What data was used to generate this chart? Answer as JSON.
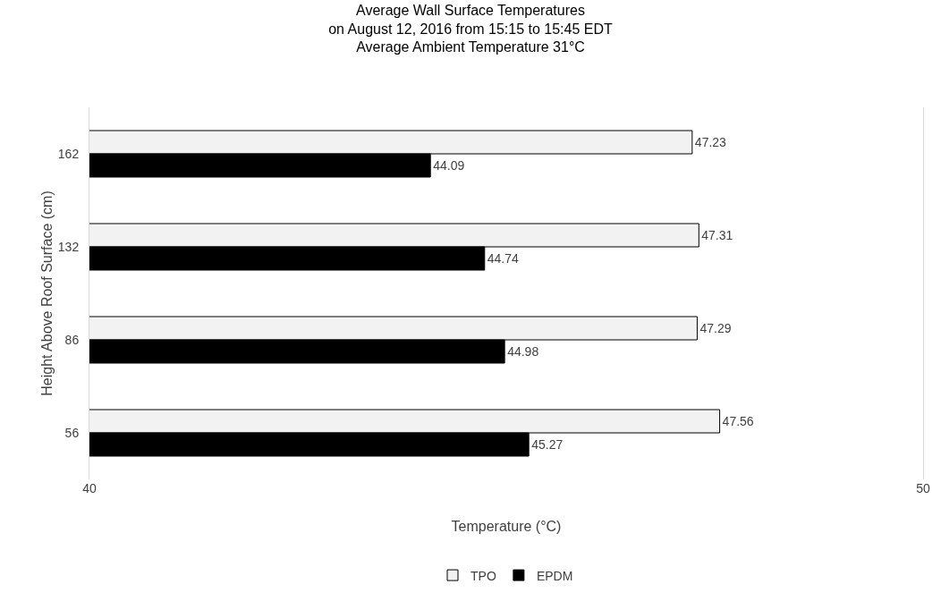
{
  "chart_data": {
    "type": "bar",
    "orientation": "horizontal",
    "title": "Average Wall Surface Temperatures\non August 12, 2016 from 15:15 to 15:45 EDT\nAverage Ambient Temperature 31°C",
    "xlabel": "Temperature (°C)",
    "ylabel": "Height Above Roof Surface (cm)",
    "categories": [
      "162",
      "132",
      "86",
      "56"
    ],
    "series": [
      {
        "name": "TPO",
        "color": "#f2f2f2",
        "values": [
          47.23,
          47.31,
          47.29,
          47.56
        ]
      },
      {
        "name": "EPDM",
        "color": "#000000",
        "values": [
          44.09,
          44.74,
          44.98,
          45.27
        ]
      }
    ],
    "xlim": [
      40,
      50
    ],
    "xticks": [
      40,
      50
    ],
    "grid": false,
    "legend": "bottom",
    "data_labels": true
  }
}
